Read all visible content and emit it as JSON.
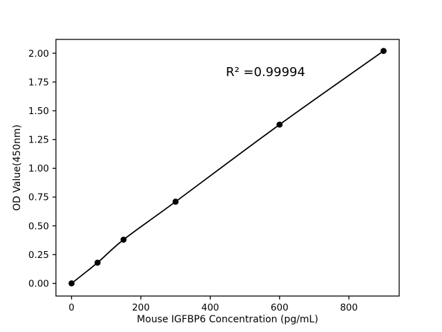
{
  "figure": {
    "background": "#ffffff",
    "foreground": "#000000"
  },
  "chart_data": {
    "type": "line",
    "title": "",
    "xlabel": "Mouse IGFBP6 Concentration (pg/mL)",
    "ylabel": "OD Value(450nm)",
    "series": [
      {
        "name": "standard-curve",
        "x": [
          0,
          75,
          150,
          300,
          600,
          900
        ],
        "y": [
          0.0,
          0.18,
          0.38,
          0.71,
          1.38,
          2.02
        ],
        "line_color": "#000000",
        "line_width": 1.8,
        "marker": "circle",
        "marker_color": "#000000",
        "marker_radius": 4.4
      }
    ],
    "xlim": [
      -45,
      945
    ],
    "ylim": [
      -0.11,
      2.12
    ],
    "xticks": [
      0,
      200,
      400,
      600,
      800
    ],
    "xtick_labels": [
      "0",
      "200",
      "400",
      "600",
      "800"
    ],
    "yticks": [
      0,
      0.25,
      0.5,
      0.75,
      1.0,
      1.25,
      1.5,
      1.75,
      2.0
    ],
    "ytick_labels": [
      "0.00",
      "0.25",
      "0.50",
      "0.75",
      "1.00",
      "1.25",
      "1.50",
      "1.75",
      "2.00"
    ],
    "grid": false,
    "legend": null,
    "annotation": {
      "text": "R² =0.99994",
      "x": 445,
      "y": 1.8
    },
    "axis_color": "#000000",
    "text_color": "#000000"
  }
}
